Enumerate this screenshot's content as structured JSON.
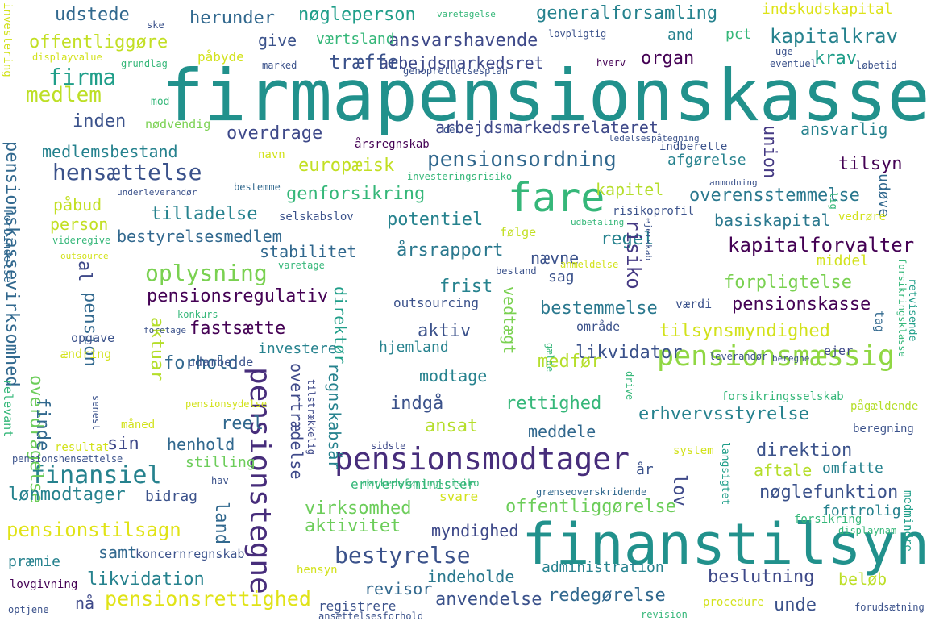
{
  "palette": {
    "dark_purple": "#440154",
    "indigo": "#3b528b",
    "teal": "#21918c",
    "green": "#5ec962",
    "yellow": "#d8e219"
  },
  "words": [
    {
      "text": "firmapensionskasse",
      "color": "#21918c"
    },
    {
      "text": "finanstilsyn",
      "color": "#21918c"
    },
    {
      "text": "pensionsmodtager",
      "color": "#472d7b"
    },
    {
      "text": "pensionstegne",
      "color": "#472d7b"
    },
    {
      "text": "fare",
      "color": "#35b779"
    },
    {
      "text": "pensionsmæssig",
      "color": "#90d743"
    },
    {
      "text": "pensionsordning",
      "color": "#31688e"
    },
    {
      "text": "bestyrelse",
      "color": "#3b528b"
    },
    {
      "text": "hensættelse",
      "color": "#3b528b"
    },
    {
      "text": "oplysning",
      "color": "#7ad151"
    },
    {
      "text": "finansiel",
      "color": "#26828e"
    },
    {
      "text": "medlem",
      "color": "#bddf26"
    },
    {
      "text": "firma",
      "color": "#1f9e89"
    },
    {
      "text": "pensionskassevirksomhed",
      "color": "#31688e"
    },
    {
      "text": "pensionstilsagn",
      "color": "#e0e317"
    },
    {
      "text": "pensionsrettighed",
      "color": "#e0e317"
    },
    {
      "text": "kapitalforvalter",
      "color": "#440154"
    },
    {
      "text": "pensionsregulativ",
      "color": "#440154"
    },
    {
      "text": "pensionskasse",
      "color": "#440154"
    },
    {
      "text": "tilsynsmyndighed",
      "color": "#d2e21b"
    },
    {
      "text": "nøgleperson",
      "color": "#1f9e89"
    },
    {
      "text": "generalforsamling",
      "color": "#26828e"
    },
    {
      "text": "kapitalkrav",
      "color": "#26828e"
    },
    {
      "text": "ansvarshavende",
      "color": "#3e4989"
    },
    {
      "text": "arbejdsmarkedsret",
      "color": "#3e4989"
    },
    {
      "text": "arbejdsmarkedsrelateret",
      "color": "#3e4989"
    },
    {
      "text": "udstede",
      "color": "#31688e"
    },
    {
      "text": "herunder",
      "color": "#31688e"
    },
    {
      "text": "offentliggøre",
      "color": "#c2df23"
    },
    {
      "text": "værtsland",
      "color": "#35b779"
    },
    {
      "text": "give",
      "color": "#3b528b"
    },
    {
      "text": "træffe",
      "color": "#3b528b"
    },
    {
      "text": "organ",
      "color": "#440154"
    },
    {
      "text": "krav",
      "color": "#1f9e89"
    },
    {
      "text": "indskudskapital",
      "color": "#dde318"
    },
    {
      "text": "and",
      "color": "#26828e"
    },
    {
      "text": "pct",
      "color": "#35b779"
    },
    {
      "text": "inden",
      "color": "#3b528b"
    },
    {
      "text": "nødvendig",
      "color": "#7ad151"
    },
    {
      "text": "overdrage",
      "color": "#3e4989"
    },
    {
      "text": "medlemsbestand",
      "color": "#26828e"
    },
    {
      "text": "europæisk",
      "color": "#c2df23"
    },
    {
      "text": "genforsikring",
      "color": "#35b779"
    },
    {
      "text": "tilladelse",
      "color": "#26828e"
    },
    {
      "text": "bestyrelsesmedlem",
      "color": "#31688e"
    },
    {
      "text": "påbud",
      "color": "#c2df23"
    },
    {
      "text": "person",
      "color": "#c2df23"
    },
    {
      "text": "potentiel",
      "color": "#26828e"
    },
    {
      "text": "årsrapport",
      "color": "#2a788e"
    },
    {
      "text": "kapitel",
      "color": "#b5de2b"
    },
    {
      "text": "overensstemmelse",
      "color": "#2a788e"
    },
    {
      "text": "basiskapital",
      "color": "#2a788e"
    },
    {
      "text": "regel",
      "color": "#26828e"
    },
    {
      "text": "tilsyn",
      "color": "#440154"
    },
    {
      "text": "ansvarlig",
      "color": "#26828e"
    },
    {
      "text": "afgørelse",
      "color": "#26828e"
    },
    {
      "text": "union",
      "color": "#443983"
    },
    {
      "text": "udøve",
      "color": "#31688e"
    },
    {
      "text": "stabilitet",
      "color": "#31688e"
    },
    {
      "text": "nævne",
      "color": "#3b528b"
    },
    {
      "text": "sag",
      "color": "#3b528b"
    },
    {
      "text": "frist",
      "color": "#26828e"
    },
    {
      "text": "forpligtelse",
      "color": "#7ad151"
    },
    {
      "text": "bestemmelse",
      "color": "#2a788e"
    },
    {
      "text": "vedtægt",
      "color": "#7ad151"
    },
    {
      "text": "direktør",
      "color": "#1f9e89"
    },
    {
      "text": "risiko",
      "color": "#443983"
    },
    {
      "text": "aktiv",
      "color": "#3b528b"
    },
    {
      "text": "likvidator",
      "color": "#3b528b"
    },
    {
      "text": "hjemland",
      "color": "#26828e"
    },
    {
      "text": "fastsætte",
      "color": "#440154"
    },
    {
      "text": "investere",
      "color": "#26828e"
    },
    {
      "text": "pension",
      "color": "#31688e"
    },
    {
      "text": "aktuar",
      "color": "#b5de2b"
    },
    {
      "text": "forhold",
      "color": "#31688e"
    },
    {
      "text": "overdragelse",
      "color": "#6ccd5a"
    },
    {
      "text": "finde",
      "color": "#31688e"
    },
    {
      "text": "overtrædelse",
      "color": "#3e4989"
    },
    {
      "text": "regnskabsår",
      "color": "#26828e"
    },
    {
      "text": "modtage",
      "color": "#26828e"
    },
    {
      "text": "medfør",
      "color": "#b5de2b"
    },
    {
      "text": "indgå",
      "color": "#3b528b"
    },
    {
      "text": "rettighed",
      "color": "#35b779"
    },
    {
      "text": "ansat",
      "color": "#b5de2b"
    },
    {
      "text": "meddele",
      "color": "#31688e"
    },
    {
      "text": "erhvervsstyrelse",
      "color": "#26828e"
    },
    {
      "text": "direktion",
      "color": "#3b528b"
    },
    {
      "text": "aftale",
      "color": "#b5de2b"
    },
    {
      "text": "omfatte",
      "color": "#26828e"
    },
    {
      "text": "nøglefunktion",
      "color": "#3b528b"
    },
    {
      "text": "offentliggørelse",
      "color": "#6ccd5a"
    },
    {
      "text": "virksomhed",
      "color": "#6ccd5a"
    },
    {
      "text": "aktivitet",
      "color": "#6ccd5a"
    },
    {
      "text": "myndighed",
      "color": "#3e4989"
    },
    {
      "text": "lov",
      "color": "#3e4989"
    },
    {
      "text": "fortrolig",
      "color": "#26828e"
    },
    {
      "text": "land",
      "color": "#31688e"
    },
    {
      "text": "reel",
      "color": "#31688e"
    },
    {
      "text": "sin",
      "color": "#3e4989"
    },
    {
      "text": "henhold",
      "color": "#31688e"
    },
    {
      "text": "stilling",
      "color": "#6ccd5a"
    },
    {
      "text": "lønmodtager",
      "color": "#26828e"
    },
    {
      "text": "bidrag",
      "color": "#3b528b"
    },
    {
      "text": "samt",
      "color": "#31688e"
    },
    {
      "text": "likvidation",
      "color": "#26828e"
    },
    {
      "text": "revisor",
      "color": "#31688e"
    },
    {
      "text": "indeholde",
      "color": "#2a788e"
    },
    {
      "text": "administration",
      "color": "#26828e"
    },
    {
      "text": "beslutning",
      "color": "#3e4989"
    },
    {
      "text": "beløb",
      "color": "#bddf26"
    },
    {
      "text": "anvendelse",
      "color": "#3b528b"
    },
    {
      "text": "redegørelse",
      "color": "#31688e"
    },
    {
      "text": "unde",
      "color": "#3b528b"
    },
    {
      "text": "nå",
      "color": "#3e4989"
    },
    {
      "text": "præmie",
      "color": "#26828e"
    },
    {
      "text": "koncernregnskab",
      "color": "#3b528b"
    },
    {
      "text": "område",
      "color": "#3b528b"
    },
    {
      "text": "ejer",
      "color": "#3e4989"
    },
    {
      "text": "tag",
      "color": "#31688e"
    },
    {
      "text": "værdi",
      "color": "#3b528b"
    },
    {
      "text": "middel",
      "color": "#d2e21b"
    },
    {
      "text": "outsourcing",
      "color": "#3b528b"
    },
    {
      "text": "udarbejde",
      "color": "#3b528b"
    },
    {
      "text": "opgave",
      "color": "#3b528b"
    },
    {
      "text": "ændring",
      "color": "#d2e21b"
    },
    {
      "text": "selskabslov",
      "color": "#3b528b"
    },
    {
      "text": "følge",
      "color": "#c2df23"
    },
    {
      "text": "erhvervsminister",
      "color": "#35b779"
    },
    {
      "text": "al",
      "color": "#3e4989"
    },
    {
      "text": "vedrøre",
      "color": "#d2e21b"
    },
    {
      "text": "retvisende",
      "color": "#1f9e89"
    },
    {
      "text": "langsigtet",
      "color": "#1f9e89"
    },
    {
      "text": "medmindre",
      "color": "#1f9e89"
    },
    {
      "text": "år",
      "color": "#3b528b"
    },
    {
      "text": "forsikring",
      "color": "#35b779"
    },
    {
      "text": "registrere",
      "color": "#3b528b"
    },
    {
      "text": "hensyn",
      "color": "#d2e21b"
    },
    {
      "text": "procedure",
      "color": "#d2e21b"
    },
    {
      "text": "resultat",
      "color": "#d2e21b"
    },
    {
      "text": "måned",
      "color": "#d2e21b"
    },
    {
      "text": "lovgivning",
      "color": "#440154"
    },
    {
      "text": "relevant",
      "color": "#35b779"
    },
    {
      "text": "mod",
      "color": "#35b779"
    },
    {
      "text": "markedsføringsrisiko",
      "color": "#35b779"
    },
    {
      "text": "beregning",
      "color": "#3b528b"
    },
    {
      "text": "pågældende",
      "color": "#b5de2b"
    },
    {
      "text": "forsikringsselskab",
      "color": "#35b779"
    },
    {
      "text": "system",
      "color": "#d2e21b"
    },
    {
      "text": "svare",
      "color": "#d2e21b"
    },
    {
      "text": "sidste",
      "color": "#3e4989"
    },
    {
      "text": "hav",
      "color": "#3b528b"
    },
    {
      "text": "forudsætning",
      "color": "#3b528b"
    },
    {
      "text": "optjene",
      "color": "#3b528b"
    },
    {
      "text": "ansættelsesforhold",
      "color": "#3b528b"
    },
    {
      "text": "revision",
      "color": "#35b779"
    },
    {
      "text": "displaynam",
      "color": "#35b779"
    },
    {
      "text": "grænseoverskridende",
      "color": "#31688e"
    },
    {
      "text": "tilstrækkelig",
      "color": "#3e4989"
    },
    {
      "text": "drive",
      "color": "#35b779"
    },
    {
      "text": "senest",
      "color": "#3b528b"
    },
    {
      "text": "gælde",
      "color": "#35b779"
    },
    {
      "text": "risikoprofil",
      "color": "#3b528b"
    },
    {
      "text": "udbetaling",
      "color": "#35b779"
    },
    {
      "text": "ejerskab",
      "color": "#3b528b"
    },
    {
      "text": "bestand",
      "color": "#3b528b"
    },
    {
      "text": "anmeldelse",
      "color": "#d2e21b"
    },
    {
      "text": "forsikringsklasse",
      "color": "#35b779"
    },
    {
      "text": "leverandør",
      "color": "#3b528b"
    },
    {
      "text": "beregne",
      "color": "#3b528b"
    },
    {
      "text": "foretage",
      "color": "#3b528b"
    },
    {
      "text": "konkurs",
      "color": "#35b779"
    },
    {
      "text": "pensionsydelse",
      "color": "#d2e21b"
    },
    {
      "text": "pensionshensættelse",
      "color": "#3b528b"
    },
    {
      "text": "varetage",
      "color": "#35b779"
    },
    {
      "text": "outsource",
      "color": "#d2e21b"
    },
    {
      "text": "videregive",
      "color": "#35b779"
    },
    {
      "text": "forbindelse",
      "color": "#31688e"
    },
    {
      "text": "underleverandør",
      "color": "#3b528b"
    },
    {
      "text": "bestemme",
      "color": "#31688e"
    },
    {
      "text": "navn",
      "color": "#d2e21b"
    },
    {
      "text": "årsregnskab",
      "color": "#440154"
    },
    {
      "text": "del",
      "color": "#3b528b"
    },
    {
      "text": "ledelsespåtegning",
      "color": "#3b528b"
    },
    {
      "text": "indberette",
      "color": "#3b528b"
    },
    {
      "text": "investeringsrisiko",
      "color": "#35b779"
    },
    {
      "text": "anmodning",
      "color": "#3b528b"
    },
    {
      "text": "lig",
      "color": "#35b779"
    },
    {
      "text": "ske",
      "color": "#3b528b"
    },
    {
      "text": "varetagelse",
      "color": "#35b779"
    },
    {
      "text": "lovpligtig",
      "color": "#3b528b"
    },
    {
      "text": "uge",
      "color": "#3b528b"
    },
    {
      "text": "eventuel",
      "color": "#3b528b"
    },
    {
      "text": "løbetid",
      "color": "#3b528b"
    },
    {
      "text": "hverv",
      "color": "#440154"
    },
    {
      "text": "genoprettelsesplan",
      "color": "#3b528b"
    },
    {
      "text": "marked",
      "color": "#3b528b"
    },
    {
      "text": "påbyde",
      "color": "#d2e21b"
    },
    {
      "text": "grundlag",
      "color": "#35b779"
    },
    {
      "text": "displayvalue",
      "color": "#d2e21b"
    },
    {
      "text": "investering",
      "color": "#d2e21b"
    }
  ]
}
